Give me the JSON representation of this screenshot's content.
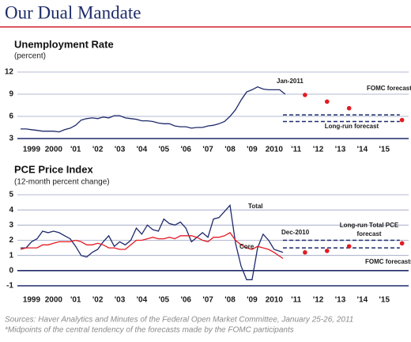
{
  "header": {
    "title": "Our Dual Mandate"
  },
  "chart_data": [
    {
      "type": "line",
      "title": "Unemployment Rate",
      "subtitle": "(percent)",
      "x": [
        1999,
        1999.25,
        1999.5,
        1999.75,
        2000,
        2000.25,
        2000.5,
        2000.75,
        2001,
        2001.25,
        2001.5,
        2001.75,
        2002,
        2002.25,
        2002.5,
        2002.75,
        2003,
        2003.25,
        2003.5,
        2003.75,
        2004,
        2004.25,
        2004.5,
        2004.75,
        2005,
        2005.25,
        2005.5,
        2005.75,
        2006,
        2006.25,
        2006.5,
        2006.75,
        2007,
        2007.25,
        2007.5,
        2007.75,
        2008,
        2008.25,
        2008.5,
        2008.75,
        2009,
        2009.25,
        2009.5,
        2009.75,
        2010,
        2010.25,
        2010.5,
        2010.75,
        2011
      ],
      "series": [
        {
          "color": "#1f2a6b",
          "values": [
            4.3,
            4.3,
            4.2,
            4.1,
            4.0,
            4.0,
            4.0,
            3.9,
            4.2,
            4.4,
            4.8,
            5.5,
            5.7,
            5.8,
            5.7,
            5.9,
            5.8,
            6.1,
            6.1,
            5.8,
            5.7,
            5.6,
            5.4,
            5.4,
            5.3,
            5.1,
            5.0,
            5.0,
            4.7,
            4.6,
            4.6,
            4.4,
            4.5,
            4.5,
            4.7,
            4.8,
            5.0,
            5.3,
            6.0,
            6.9,
            8.2,
            9.3,
            9.6,
            10.0,
            9.7,
            9.6,
            9.6,
            9.6,
            9.0
          ]
        }
      ],
      "forecast": {
        "name": "FOMC forecasts*",
        "color": "#e31b23",
        "x": [
          2011.9,
          2012.9,
          2013.9,
          2016.3
        ],
        "values": [
          8.9,
          8.0,
          7.1,
          5.5
        ]
      },
      "long_run": {
        "name": "Long-run forecast",
        "x": [
          2010.9,
          2016.2
        ],
        "values": [
          6.2,
          5.3
        ]
      },
      "annotations": [
        "Jan-2011"
      ],
      "xlim": [
        1999,
        2016.6
      ],
      "xticks": [
        {
          "value": 1999.5,
          "label": "1999"
        },
        {
          "value": 2000.5,
          "label": "2000"
        },
        {
          "value": 2001.5,
          "label": "'01"
        },
        {
          "value": 2002.5,
          "label": "'02"
        },
        {
          "value": 2003.5,
          "label": "'03"
        },
        {
          "value": 2004.5,
          "label": "'04"
        },
        {
          "value": 2005.5,
          "label": "'05"
        },
        {
          "value": 2006.5,
          "label": "'06"
        },
        {
          "value": 2007.5,
          "label": "'07"
        },
        {
          "value": 2008.5,
          "label": "'08"
        },
        {
          "value": 2009.5,
          "label": "'09"
        },
        {
          "value": 2010.5,
          "label": "2010"
        },
        {
          "value": 2011.5,
          "label": "'11"
        },
        {
          "value": 2012.5,
          "label": "'12"
        },
        {
          "value": 2013.5,
          "label": "'13"
        },
        {
          "value": 2014.5,
          "label": "'14"
        },
        {
          "value": 2015.5,
          "label": "'15"
        }
      ],
      "ylim": [
        3,
        12
      ],
      "yticks": [
        3,
        6,
        9,
        12
      ],
      "grid": true
    },
    {
      "type": "line",
      "title": "PCE Price Index",
      "subtitle": "(12-month percent change)",
      "x": [
        1999,
        1999.25,
        1999.5,
        1999.75,
        2000,
        2000.25,
        2000.5,
        2000.75,
        2001,
        2001.25,
        2001.5,
        2001.75,
        2002,
        2002.25,
        2002.5,
        2002.75,
        2003,
        2003.25,
        2003.5,
        2003.75,
        2004,
        2004.25,
        2004.5,
        2004.75,
        2005,
        2005.25,
        2005.5,
        2005.75,
        2006,
        2006.25,
        2006.5,
        2006.75,
        2007,
        2007.25,
        2007.5,
        2007.75,
        2008,
        2008.25,
        2008.5,
        2008.75,
        2009,
        2009.25,
        2009.5,
        2009.75,
        2010,
        2010.25,
        2010.5,
        2010.9
      ],
      "series": [
        {
          "name": "Total",
          "color": "#1f2a6b",
          "values": [
            1.5,
            1.5,
            1.9,
            2.1,
            2.6,
            2.5,
            2.6,
            2.5,
            2.3,
            2.1,
            1.6,
            1.0,
            0.9,
            1.2,
            1.4,
            1.9,
            2.3,
            1.6,
            1.9,
            1.7,
            2.0,
            2.8,
            2.4,
            3.0,
            2.7,
            2.6,
            3.4,
            3.1,
            3.0,
            3.2,
            2.8,
            1.9,
            2.2,
            2.5,
            2.2,
            3.4,
            3.5,
            3.9,
            4.3,
            1.8,
            0.3,
            -0.6,
            -0.6,
            1.5,
            2.4,
            2.0,
            1.4,
            1.2
          ]
        },
        {
          "name": "Core",
          "color": "#e31b23",
          "values": [
            1.4,
            1.5,
            1.5,
            1.5,
            1.7,
            1.7,
            1.8,
            1.9,
            1.9,
            1.9,
            2.0,
            1.9,
            1.7,
            1.7,
            1.8,
            1.7,
            1.5,
            1.5,
            1.4,
            1.4,
            1.7,
            2.0,
            2.0,
            2.1,
            2.2,
            2.1,
            2.1,
            2.2,
            2.1,
            2.3,
            2.3,
            2.3,
            2.2,
            2.0,
            1.9,
            2.2,
            2.2,
            2.3,
            2.5,
            2.0,
            1.7,
            1.5,
            1.4,
            1.6,
            1.5,
            1.4,
            1.2,
            0.8
          ]
        }
      ],
      "forecast": {
        "name": "FOMC forecasts*",
        "color": "#e31b23",
        "x": [
          2011.9,
          2012.9,
          2013.9,
          2016.3
        ],
        "values": [
          1.2,
          1.3,
          1.6,
          1.8
        ]
      },
      "long_run": {
        "name": [
          "Long-run Total PCE",
          "forecast"
        ],
        "x": [
          2010.9,
          2016.2
        ],
        "values": [
          2.0,
          1.5
        ]
      },
      "annotations": [
        "Dec-2010"
      ],
      "xlim": [
        1999,
        2016.6
      ],
      "xticks": [
        {
          "value": 1999.5,
          "label": "1999"
        },
        {
          "value": 2000.5,
          "label": "2000"
        },
        {
          "value": 2001.5,
          "label": "'01"
        },
        {
          "value": 2002.5,
          "label": "'02"
        },
        {
          "value": 2003.5,
          "label": "'03"
        },
        {
          "value": 2004.5,
          "label": "'04"
        },
        {
          "value": 2005.5,
          "label": "'05"
        },
        {
          "value": 2006.5,
          "label": "'06"
        },
        {
          "value": 2007.5,
          "label": "'07"
        },
        {
          "value": 2008.5,
          "label": "'08"
        },
        {
          "value": 2009.5,
          "label": "'09"
        },
        {
          "value": 2010.5,
          "label": "2010"
        },
        {
          "value": 2011.5,
          "label": "'11"
        },
        {
          "value": 2012.5,
          "label": "'12"
        },
        {
          "value": 2013.5,
          "label": "'13"
        },
        {
          "value": 2014.5,
          "label": "'14"
        },
        {
          "value": 2015.5,
          "label": "'15"
        }
      ],
      "ylim": [
        -1,
        5
      ],
      "yticks": [
        -1,
        0,
        1,
        2,
        3,
        4,
        5
      ],
      "grid": true
    }
  ],
  "footer": {
    "sources": "Sources: Haver Analytics and Minutes of the Federal Open Market Committee, January 25-26, 2011",
    "note": "*Midpoints of the central tendency of the forecasts made by the FOMC participants"
  }
}
